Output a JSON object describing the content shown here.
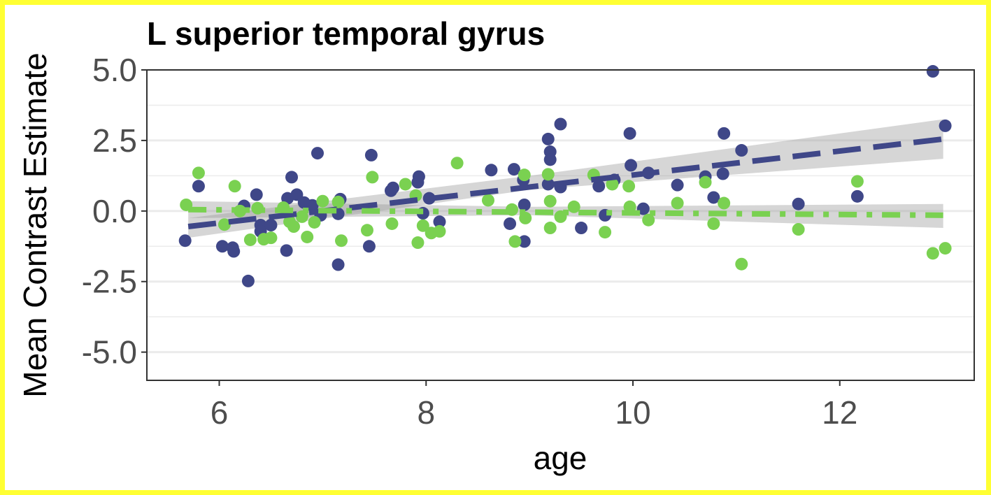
{
  "chart_data": {
    "type": "scatter",
    "title": "L superior temporal gyrus",
    "xlabel": "age",
    "ylabel": "Mean Contrast Estimate",
    "xlim": [
      5.3,
      13.3
    ],
    "ylim": [
      -6.0,
      5.0
    ],
    "x_ticks": [
      6,
      8,
      10,
      12
    ],
    "x_tick_labels": [
      "6",
      "8",
      "10",
      "12"
    ],
    "y_ticks": [
      5.0,
      2.5,
      0.0,
      -2.5,
      -5.0
    ],
    "y_tick_labels": [
      "5.0",
      "2.5",
      "0.0",
      "-2.5",
      "-5.0"
    ],
    "grid": "horizontal",
    "legend": "none",
    "series": [
      {
        "color": "#3f4788",
        "line_style": "dashed",
        "fit": {
          "x": [
            5.7,
            13.0
          ],
          "y": [
            -0.55,
            2.55
          ]
        },
        "ci": {
          "x": [
            5.7,
            9.0,
            13.0
          ],
          "upper": [
            -0.25,
            1.25,
            3.25
          ],
          "lower": [
            -0.95,
            0.75,
            1.85
          ]
        },
        "points": [
          [
            5.67,
            -1.05
          ],
          [
            5.8,
            0.88
          ],
          [
            6.03,
            -1.25
          ],
          [
            6.13,
            -1.3
          ],
          [
            6.14,
            -1.43
          ],
          [
            6.24,
            0.18
          ],
          [
            6.28,
            -2.48
          ],
          [
            6.36,
            0.58
          ],
          [
            6.4,
            -0.5
          ],
          [
            6.4,
            -0.72
          ],
          [
            6.5,
            -0.5
          ],
          [
            6.65,
            -1.4
          ],
          [
            6.66,
            0.45
          ],
          [
            6.7,
            1.2
          ],
          [
            6.75,
            0.58
          ],
          [
            6.82,
            0.3
          ],
          [
            6.9,
            0.2
          ],
          [
            6.95,
            2.05
          ],
          [
            6.98,
            -0.15
          ],
          [
            7.15,
            -1.9
          ],
          [
            7.15,
            -0.1
          ],
          [
            7.17,
            0.42
          ],
          [
            7.45,
            -1.25
          ],
          [
            7.47,
            1.98
          ],
          [
            7.66,
            0.72
          ],
          [
            7.68,
            0.82
          ],
          [
            7.92,
            1.02
          ],
          [
            7.93,
            1.22
          ],
          [
            7.97,
            -0.08
          ],
          [
            8.03,
            0.45
          ],
          [
            8.13,
            -0.38
          ],
          [
            8.63,
            1.45
          ],
          [
            8.81,
            -0.45
          ],
          [
            8.85,
            1.48
          ],
          [
            8.94,
            1.1
          ],
          [
            8.95,
            0.22
          ],
          [
            8.95,
            -1.08
          ],
          [
            9.18,
            2.55
          ],
          [
            9.18,
            0.95
          ],
          [
            9.2,
            2.1
          ],
          [
            9.2,
            1.82
          ],
          [
            9.3,
            3.08
          ],
          [
            9.3,
            0.85
          ],
          [
            9.5,
            -0.6
          ],
          [
            9.67,
            0.88
          ],
          [
            9.73,
            -0.15
          ],
          [
            9.82,
            1.1
          ],
          [
            9.97,
            2.75
          ],
          [
            9.98,
            1.62
          ],
          [
            10.1,
            0.08
          ],
          [
            10.15,
            1.35
          ],
          [
            10.43,
            0.92
          ],
          [
            10.7,
            1.22
          ],
          [
            10.78,
            0.48
          ],
          [
            10.87,
            1.32
          ],
          [
            10.88,
            2.75
          ],
          [
            11.05,
            2.15
          ],
          [
            11.6,
            0.25
          ],
          [
            12.17,
            0.52
          ],
          [
            12.9,
            4.95
          ],
          [
            13.02,
            3.02
          ]
        ]
      },
      {
        "color": "#7ad151",
        "line_style": "dotdash",
        "fit": {
          "x": [
            5.7,
            13.0
          ],
          "y": [
            0.05,
            -0.15
          ]
        },
        "ci": {
          "x": [
            5.7,
            9.0,
            13.0
          ],
          "upper": [
            0.35,
            0.15,
            0.25
          ],
          "lower": [
            -0.25,
            -0.15,
            -0.6
          ]
        },
        "points": [
          [
            5.68,
            0.22
          ],
          [
            5.8,
            1.35
          ],
          [
            6.05,
            -0.48
          ],
          [
            6.15,
            0.88
          ],
          [
            6.2,
            0.0
          ],
          [
            6.3,
            -1.02
          ],
          [
            6.37,
            0.1
          ],
          [
            6.43,
            -1.0
          ],
          [
            6.5,
            -0.95
          ],
          [
            6.62,
            0.12
          ],
          [
            6.68,
            -0.38
          ],
          [
            6.72,
            -0.55
          ],
          [
            6.8,
            -0.2
          ],
          [
            6.85,
            -0.92
          ],
          [
            6.92,
            -0.4
          ],
          [
            7.0,
            0.35
          ],
          [
            7.15,
            0.32
          ],
          [
            7.18,
            -1.05
          ],
          [
            7.43,
            -0.68
          ],
          [
            7.48,
            1.2
          ],
          [
            7.67,
            -0.45
          ],
          [
            7.8,
            0.95
          ],
          [
            7.9,
            0.55
          ],
          [
            7.92,
            -1.12
          ],
          [
            7.97,
            -0.52
          ],
          [
            8.05,
            -0.78
          ],
          [
            8.13,
            -0.72
          ],
          [
            8.3,
            1.7
          ],
          [
            8.6,
            0.38
          ],
          [
            8.83,
            0.05
          ],
          [
            8.86,
            -1.08
          ],
          [
            8.95,
            1.28
          ],
          [
            8.96,
            -0.25
          ],
          [
            9.18,
            1.3
          ],
          [
            9.2,
            0.35
          ],
          [
            9.2,
            -0.6
          ],
          [
            9.3,
            -0.2
          ],
          [
            9.43,
            0.15
          ],
          [
            9.62,
            1.28
          ],
          [
            9.73,
            -0.75
          ],
          [
            9.8,
            0.95
          ],
          [
            9.96,
            0.88
          ],
          [
            9.97,
            0.15
          ],
          [
            10.15,
            -0.32
          ],
          [
            10.43,
            0.28
          ],
          [
            10.7,
            1.02
          ],
          [
            10.78,
            -0.45
          ],
          [
            10.88,
            0.28
          ],
          [
            11.05,
            -1.88
          ],
          [
            11.6,
            -0.65
          ],
          [
            12.17,
            1.05
          ],
          [
            12.9,
            -1.5
          ],
          [
            13.02,
            -1.32
          ]
        ]
      }
    ]
  }
}
